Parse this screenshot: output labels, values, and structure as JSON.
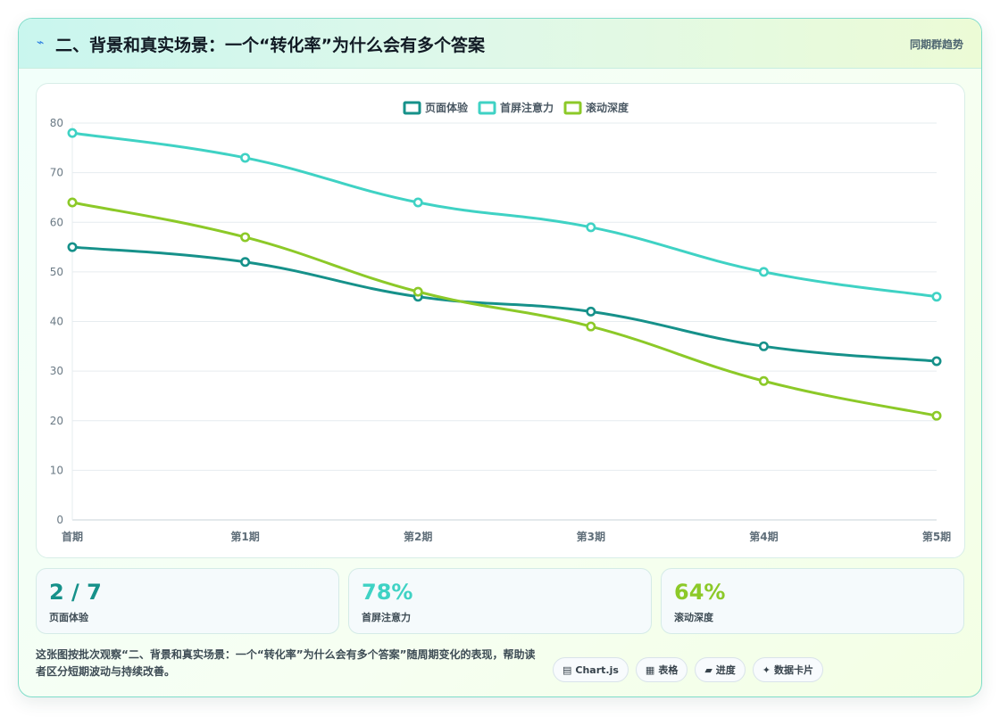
{
  "header": {
    "icon": "lightning-icon",
    "title": "二、背景和真实场景：一个“转化率”为什么会有多个答案",
    "tag": "同期群趋势"
  },
  "chart_data": {
    "type": "line",
    "categories": [
      "首期",
      "第1期",
      "第2期",
      "第3期",
      "第4期",
      "第5期"
    ],
    "series": [
      {
        "name": "页面体验",
        "color": "#16918a",
        "values": [
          55,
          52,
          45,
          42,
          35,
          32
        ]
      },
      {
        "name": "首屏注意力",
        "color": "#3fd2c4",
        "values": [
          78,
          73,
          64,
          59,
          50,
          45
        ]
      },
      {
        "name": "滚动深度",
        "color": "#8cc928",
        "values": [
          64,
          57,
          46,
          39,
          28,
          21
        ]
      }
    ],
    "ylim": [
      0,
      80
    ],
    "yticks": [
      0,
      10,
      20,
      30,
      40,
      50,
      60,
      70,
      80
    ],
    "grid": true,
    "legend": "top-center"
  },
  "stats": [
    {
      "value": "2 / 7",
      "label": "页面体验",
      "color": "#16918a"
    },
    {
      "value": "78%",
      "label": "首屏注意力",
      "color": "#3fd2c4"
    },
    {
      "value": "64%",
      "label": "滚动深度",
      "color": "#8cc928"
    }
  ],
  "description": "这张图按批次观察“二、背景和真实场景：一个“转化率”为什么会有多个答案”随周期变化的表现，帮助读者区分短期波动与持续改善。",
  "pills": [
    {
      "icon": "chart-icon",
      "glyph": "▤",
      "label": "Chart.js"
    },
    {
      "icon": "table-icon",
      "glyph": "▦",
      "label": "表格"
    },
    {
      "icon": "progress-icon",
      "glyph": "▰",
      "label": "进度"
    },
    {
      "icon": "sparkle-icon",
      "glyph": "✦",
      "label": "数据卡片"
    }
  ]
}
